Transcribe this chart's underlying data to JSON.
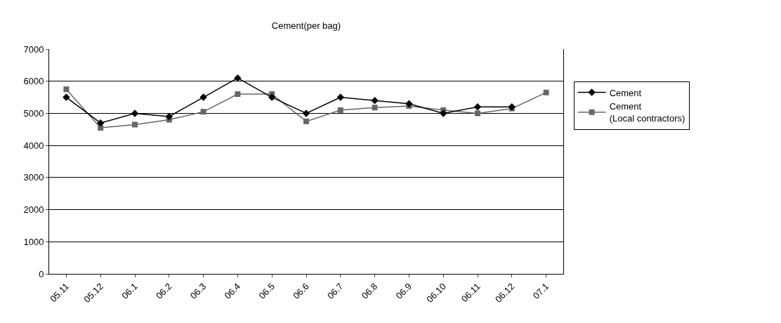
{
  "chart_data": {
    "type": "line",
    "title": "Cement(per bag)",
    "categories": [
      "05.11",
      "05.12",
      "06.1",
      "06.2",
      "06.3",
      "06.4",
      "06.5",
      "06.6",
      "06.7",
      "06.8",
      "06.9",
      "06.10",
      "06.11",
      "06.12",
      "07.1"
    ],
    "series": [
      {
        "name": "Cement",
        "color": "#000000",
        "marker": "diamond",
        "values": [
          5500,
          4700,
          5000,
          4900,
          5500,
          6100,
          5500,
          5000,
          5500,
          5400,
          5300,
          5000,
          5200,
          5200,
          null
        ]
      },
      {
        "name": "Cement\n(Local contractors)",
        "color": "#666666",
        "marker": "square",
        "values": [
          5750,
          4550,
          4650,
          4800,
          5050,
          5600,
          5600,
          4750,
          5100,
          5180,
          5230,
          5100,
          5000,
          5150,
          5650
        ]
      }
    ],
    "ylim": [
      0,
      7000
    ],
    "yticks": [
      0,
      1000,
      2000,
      3000,
      4000,
      5000,
      6000,
      7000
    ],
    "grid": "y",
    "legend": "right"
  }
}
